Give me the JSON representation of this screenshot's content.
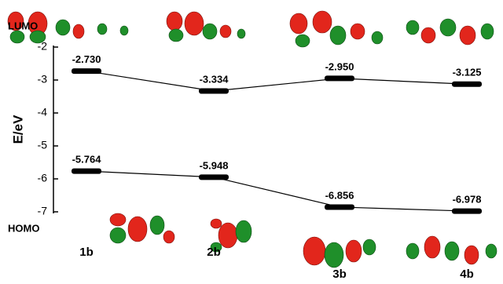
{
  "chart_data": {
    "type": "line",
    "ylabel": "E/eV",
    "categories": [
      "1b",
      "2b",
      "3b",
      "4b"
    ],
    "series": [
      {
        "name": "LUMO",
        "color": "#000000",
        "values": [
          -2.73,
          -3.334,
          -2.95,
          -3.125
        ],
        "value_labels": [
          "-2.730",
          "-3.334",
          "-2.950",
          "-3.125"
        ]
      },
      {
        "name": "HOMO",
        "color": "#000000",
        "values": [
          -5.764,
          -5.948,
          -6.856,
          -6.978
        ],
        "value_labels": [
          "-5.764",
          "-5.948",
          "-6.856",
          "-6.978"
        ]
      }
    ],
    "ylim": [
      -7,
      -2
    ],
    "yticks": [
      -7,
      -6,
      -5,
      -4,
      -3,
      -2
    ]
  }
}
